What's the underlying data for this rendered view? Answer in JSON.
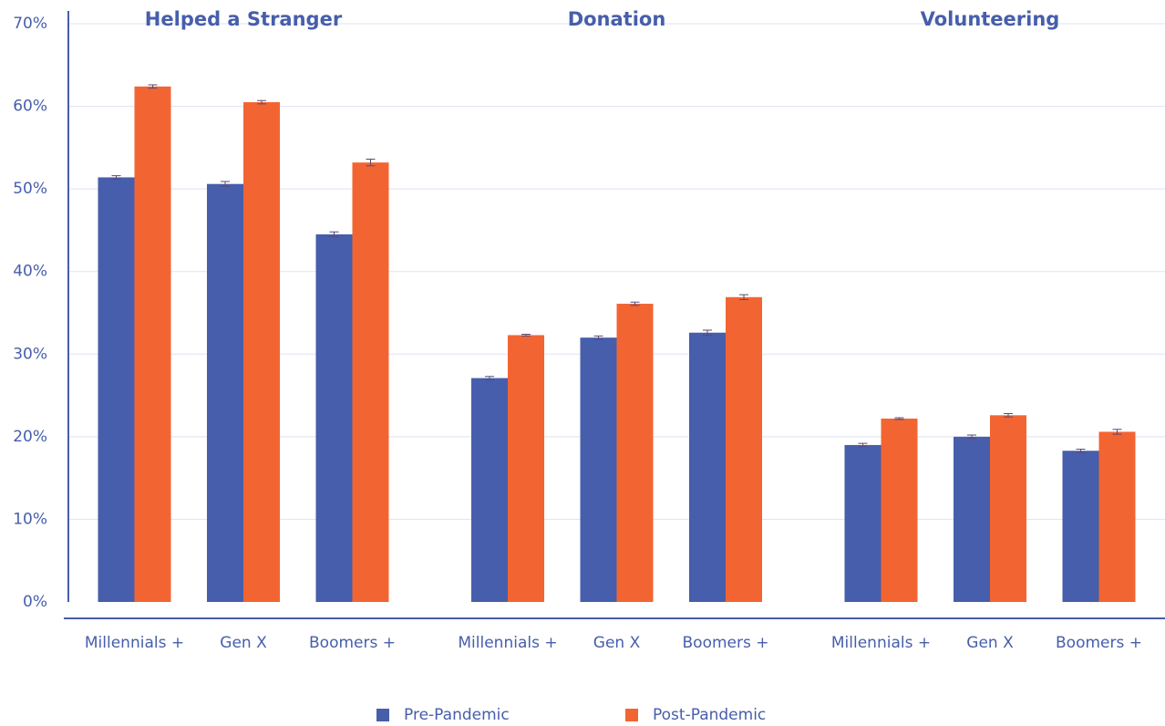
{
  "chart_data": {
    "type": "bar",
    "groups": [
      "Helped a Stranger",
      "Donation",
      "Volunteering"
    ],
    "categories": [
      "Millennials +",
      "Gen X",
      "Boomers +",
      "Millennials +",
      "Gen X",
      "Boomers +",
      "Millennials +",
      "Gen X",
      "Boomers +"
    ],
    "series": [
      {
        "name": "Pre-Pandemic",
        "color": "#465eab",
        "values": [
          51.4,
          50.6,
          44.5,
          27.1,
          32.0,
          32.6,
          19.0,
          20.0,
          18.3
        ],
        "errors": [
          0.2,
          0.3,
          0.3,
          0.2,
          0.2,
          0.3,
          0.2,
          0.2,
          0.2
        ]
      },
      {
        "name": "Post-Pandemic",
        "color": "#f26532",
        "values": [
          62.4,
          60.5,
          53.2,
          32.3,
          36.1,
          36.9,
          22.2,
          22.6,
          20.6
        ],
        "errors": [
          0.2,
          0.2,
          0.4,
          0.1,
          0.2,
          0.3,
          0.1,
          0.2,
          0.3
        ]
      }
    ],
    "ylim": [
      0,
      70
    ],
    "yticks": [
      {
        "value": 0,
        "label": "0%"
      },
      {
        "value": 10,
        "label": "10%"
      },
      {
        "value": 20,
        "label": "20%"
      },
      {
        "value": 30,
        "label": "30%"
      },
      {
        "value": 40,
        "label": "40%"
      },
      {
        "value": 50,
        "label": "50%"
      },
      {
        "value": 60,
        "label": "60%"
      },
      {
        "value": 70,
        "label": "70%"
      }
    ],
    "grid": true
  }
}
